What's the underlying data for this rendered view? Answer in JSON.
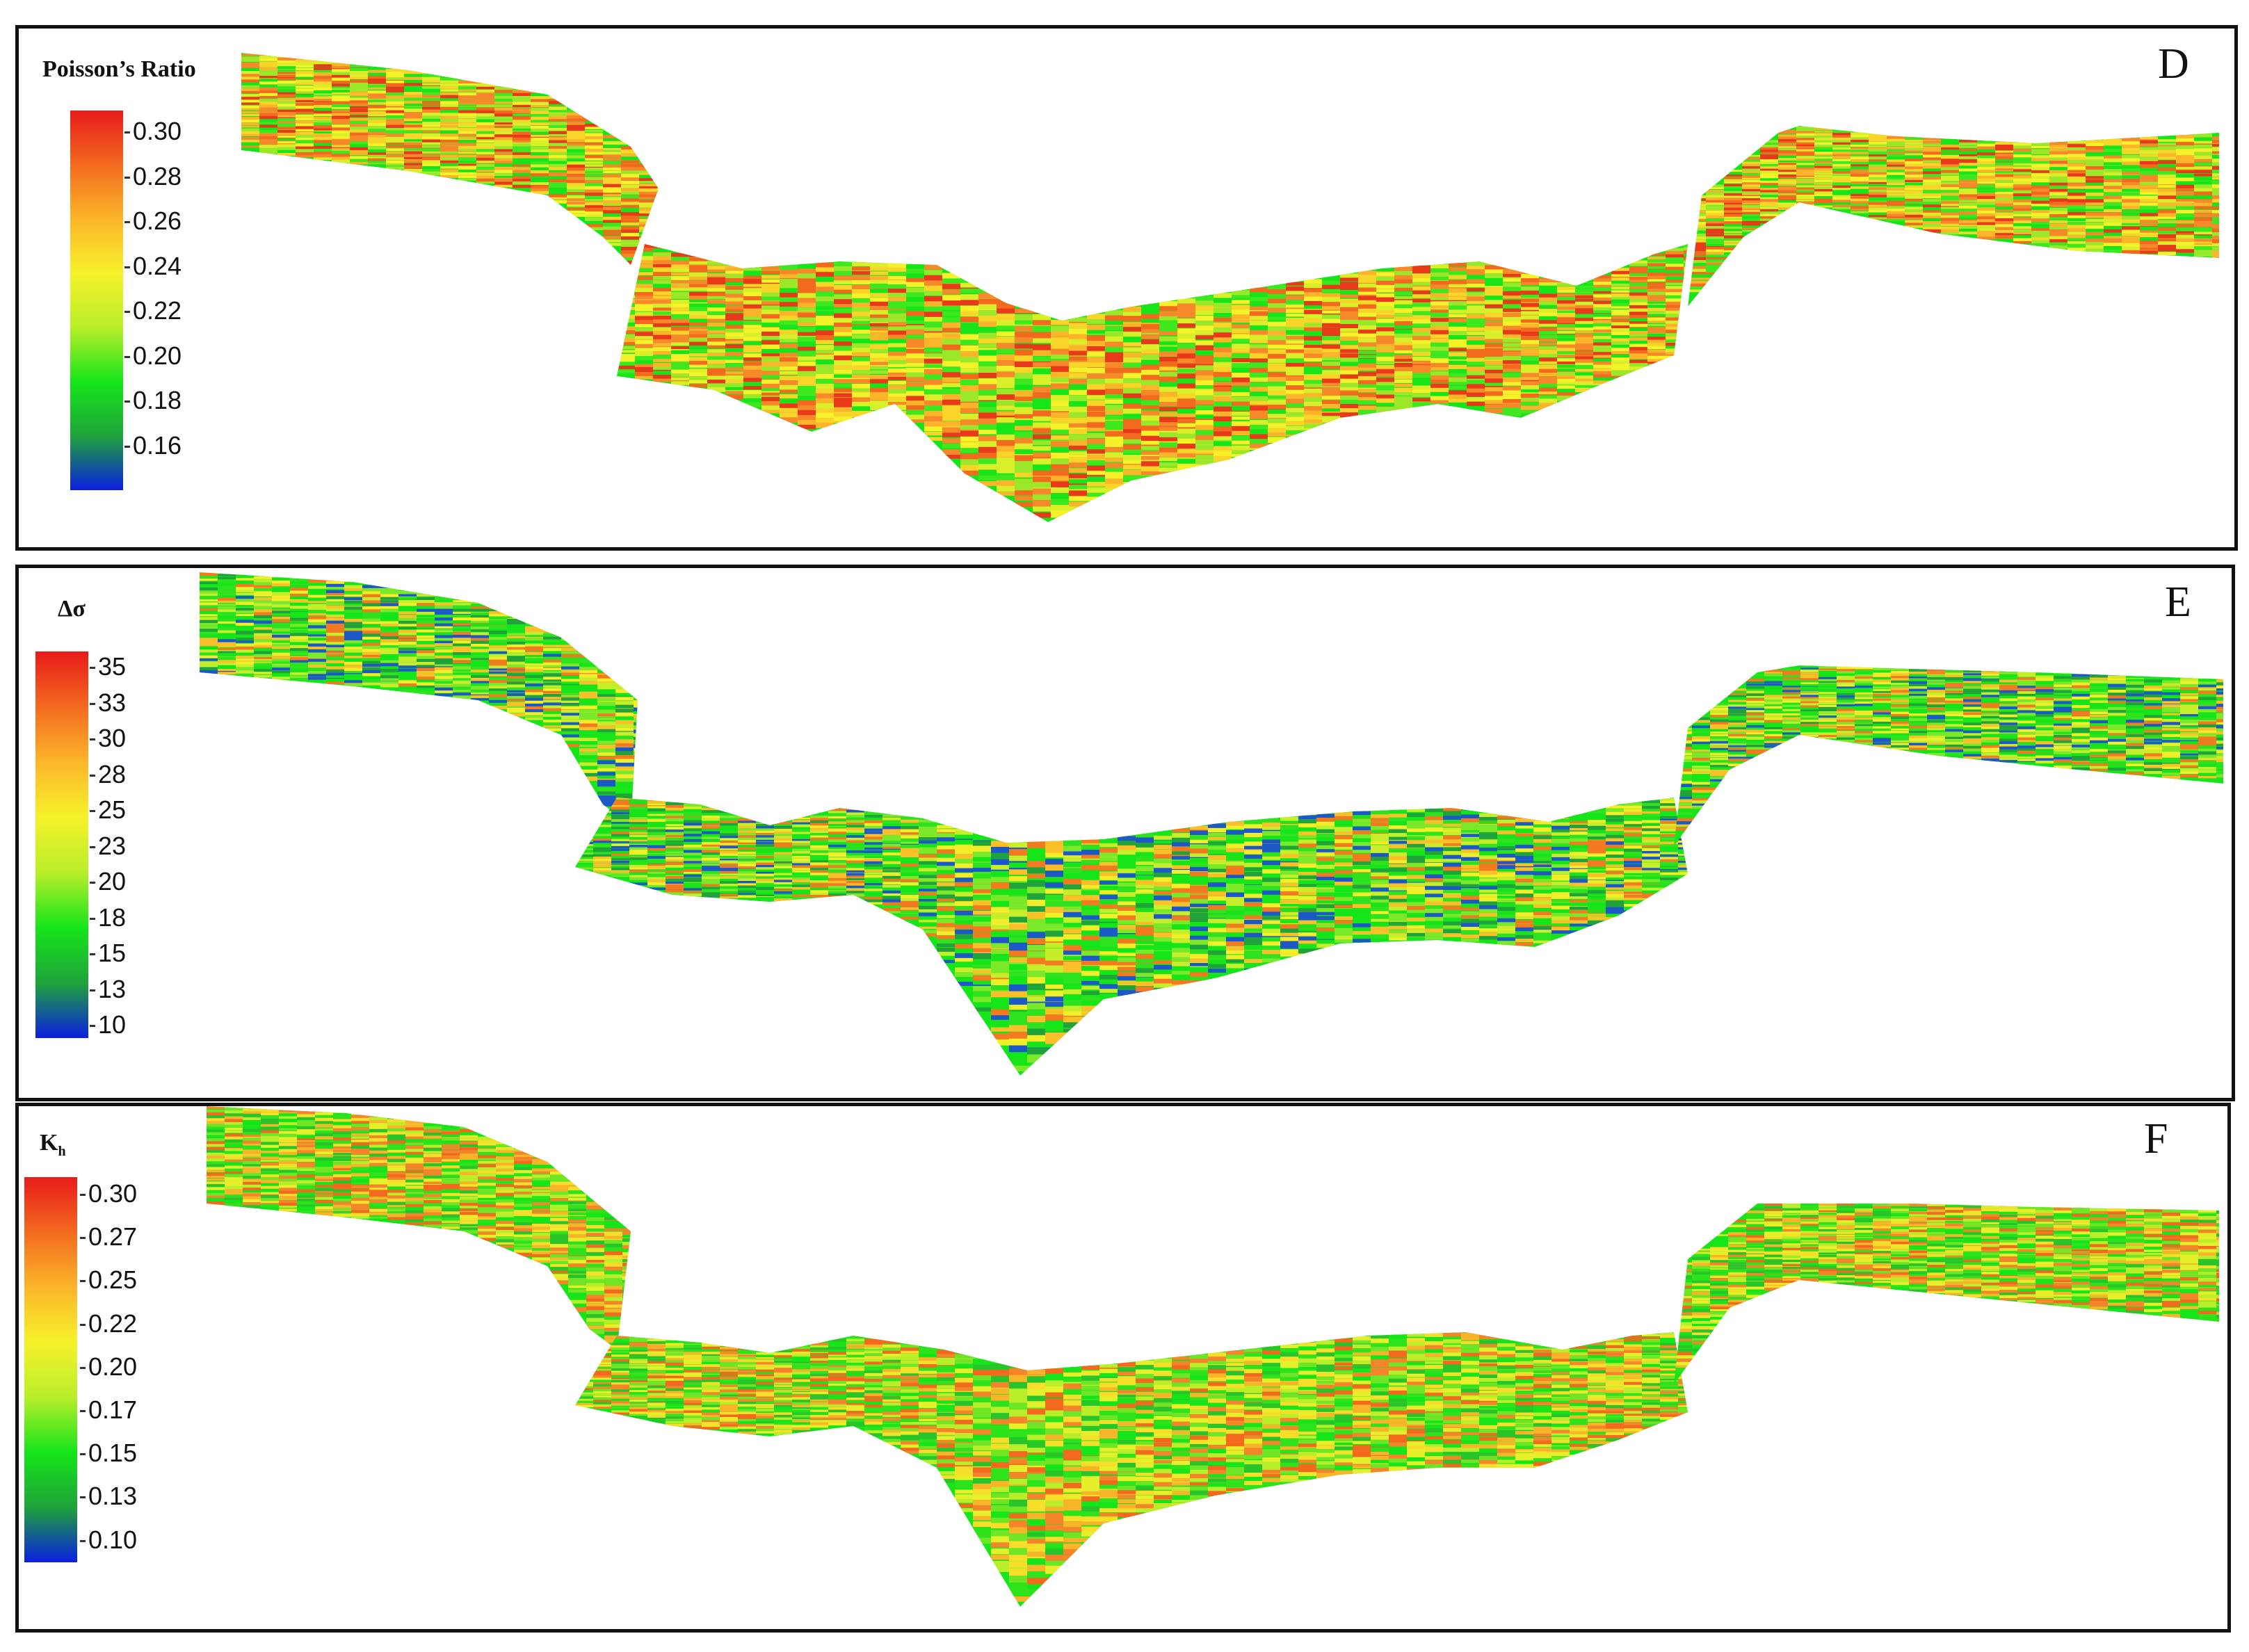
{
  "colors": {
    "scale": [
      "#0b1fe0",
      "#1fa33a",
      "#16e51a",
      "#b9ee2a",
      "#f6f22a",
      "#fcb52a",
      "#f36a1f",
      "#e81b1b"
    ]
  },
  "panels": [
    {
      "letter": "D",
      "legend_title": "Poisson’s Ratio",
      "ticks": [
        "0.30",
        "0.28",
        "0.26",
        "0.24",
        "0.22",
        "0.20",
        "0.18",
        "0.16"
      ],
      "tint": "warm"
    },
    {
      "letter": "E",
      "legend_title": "Δσ",
      "ticks": [
        "35",
        "33",
        "30",
        "28",
        "25",
        "23",
        "20",
        "18",
        "15",
        "13",
        "10"
      ],
      "tint": "cool"
    },
    {
      "letter": "F",
      "legend_title": "K",
      "legend_title_sub": "h",
      "ticks": [
        "0.30",
        "0.27",
        "0.25",
        "0.22",
        "0.20",
        "0.17",
        "0.15",
        "0.13",
        "0.10"
      ],
      "tint": "mixed"
    }
  ]
}
